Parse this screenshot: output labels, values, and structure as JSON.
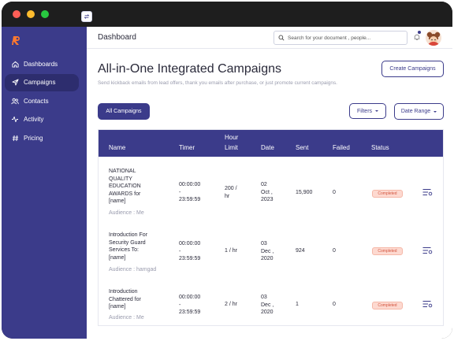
{
  "app": {
    "window_controls": [
      "close",
      "minimize",
      "maximize"
    ],
    "brand_color": "#3b3b8a",
    "logo_icon": "r-logo-icon"
  },
  "sidebar": {
    "items": [
      {
        "label": "Dashboards",
        "icon": "home-icon",
        "active": false
      },
      {
        "label": "Campaigns",
        "icon": "send-icon",
        "active": true
      },
      {
        "label": "Contacts",
        "icon": "users-icon",
        "active": false
      },
      {
        "label": "Activity",
        "icon": "activity-icon",
        "active": false
      },
      {
        "label": "Pricing",
        "icon": "hash-icon",
        "active": false
      }
    ]
  },
  "header": {
    "page_name": "Dashboard",
    "search_placeholder": "Search for your document , people..."
  },
  "content": {
    "title": "All-in-One Integrated Campaigns",
    "subtitle": "Send kickback emails from lead offers, thank you emails after purchase, or just promote current campaigns.",
    "create_button": "Create Campaigns",
    "all_button": "All Campaigns",
    "filters_button": "Filters",
    "date_range_button": "Date Range"
  },
  "table": {
    "columns": {
      "name": "Name",
      "timer": "Timer",
      "hour_limit_1": "Hour",
      "hour_limit_2": "Limit",
      "date": "Date",
      "sent": "Sent",
      "failed": "Failed",
      "status": "Status"
    },
    "rows": [
      {
        "name_lines": [
          "NATIONAL",
          "QUALITY",
          "EDUCATION",
          "AWARDS for",
          "[name]"
        ],
        "audience": "Audience : Me",
        "timer_lines": [
          "00:00:00",
          "-",
          "23:59:59"
        ],
        "limit_lines": [
          "200 /",
          "hr"
        ],
        "date_lines": [
          "02",
          "Oct ,",
          "2023"
        ],
        "sent": "15,900",
        "failed": "0",
        "status": "Completed"
      },
      {
        "name_lines": [
          "Introduction For",
          "Security Guard",
          "Services To:",
          "[name]"
        ],
        "audience": "Audience : hamgad",
        "timer_lines": [
          "00:00:00",
          "-",
          "23:59:59"
        ],
        "limit_lines": [
          "1 / hr"
        ],
        "date_lines": [
          "03",
          "Dec ,",
          "2020"
        ],
        "sent": "924",
        "failed": "0",
        "status": "Completed"
      },
      {
        "name_lines": [
          "Introduction",
          "Chattered for",
          "[name]"
        ],
        "audience": "Audience : Me",
        "timer_lines": [
          "00:00:00",
          "-",
          "23:59:59"
        ],
        "limit_lines": [
          "2 / hr"
        ],
        "date_lines": [
          "03",
          "Dec ,",
          "2020"
        ],
        "sent": "1",
        "failed": "0",
        "status": "Completed"
      }
    ]
  }
}
